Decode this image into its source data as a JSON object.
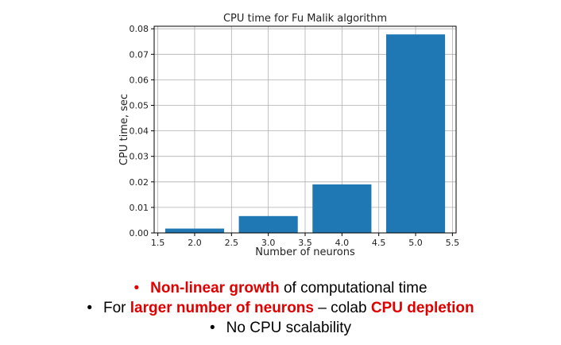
{
  "chart_data": {
    "type": "bar",
    "title": "CPU time for Fu Malik algorithm",
    "xlabel": "Number of neurons",
    "ylabel": "CPU time, sec",
    "x": [
      2,
      3,
      4,
      5
    ],
    "values": [
      0.0017,
      0.0066,
      0.019,
      0.0778
    ],
    "bar_width": 0.8,
    "xlim": [
      1.45,
      5.55
    ],
    "ylim": [
      0,
      0.081
    ],
    "xticks": [
      "1.5",
      "2.0",
      "2.5",
      "3.0",
      "3.5",
      "4.0",
      "4.5",
      "5.0",
      "5.5"
    ],
    "yticks": [
      "0.00",
      "0.01",
      "0.02",
      "0.03",
      "0.04",
      "0.05",
      "0.06",
      "0.07",
      "0.08"
    ],
    "grid": true,
    "bar_color": "#1f77b4"
  },
  "bullets": [
    {
      "bullet": "•",
      "bullet_color": "#e00000",
      "highlight": "Non-linear growth",
      "text": " of computational time"
    },
    {
      "bullet": "•",
      "pre": "For ",
      "highlight": "larger number of neurons",
      "mid": " – colab ",
      "highlight2": "CPU depletion"
    },
    {
      "bullet": "•",
      "text": "No CPU scalability"
    }
  ]
}
